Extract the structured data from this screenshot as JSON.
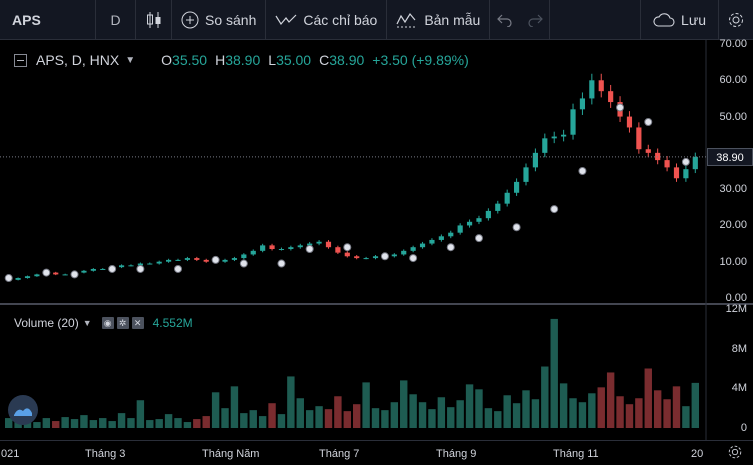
{
  "toolbar": {
    "symbol": "APS",
    "interval": "D",
    "chart_type_icon": "candles-icon",
    "compare_label": "So sánh",
    "indicators_label": "Các chỉ báo",
    "templates_label": "Bản mẫu",
    "save_label": "Lưu",
    "icons": [
      "plus-circle-icon",
      "indicators-icon",
      "templates-icon",
      "undo-icon",
      "redo-icon",
      "cloud-icon",
      "gear-icon"
    ]
  },
  "legend": {
    "title": "APS, D, HNX",
    "open_key": "O",
    "open": "35.50",
    "high_key": "H",
    "high": "38.90",
    "low_key": "L",
    "low": "35.00",
    "close_key": "C",
    "close": "38.90",
    "change": "+3.50 (+9.89%)"
  },
  "volume_legend": {
    "name": "Volume (20)",
    "value": "4.552M",
    "buttons": [
      "eye-icon",
      "settings-icon",
      "close-icon"
    ]
  },
  "colors": {
    "up": "#26a69a",
    "down": "#ef5350",
    "up_volume": "#1e5c52",
    "down_volume": "#7a2c2f",
    "background": "#000000",
    "toolbar": "#131722"
  },
  "chart_data": [
    {
      "type": "candlestick",
      "symbol": "APS",
      "exchange": "HNX",
      "interval": "D",
      "ylim": [
        0,
        70
      ],
      "y_ticks": [
        "0.00",
        "10.00",
        "20.00",
        "30.00",
        "40.00",
        "50.00",
        "60.00",
        "70.00"
      ],
      "last_price": "38.90",
      "x_labels": [
        "021",
        "Tháng 3",
        "Tháng Năm",
        "Tháng 7",
        "Tháng 9",
        "Tháng 11",
        "20"
      ],
      "close_series": [
        5.0,
        5.5,
        6.0,
        6.5,
        7.0,
        6.5,
        6.5,
        7.0,
        7.5,
        8.0,
        8.0,
        8.5,
        9.0,
        9.0,
        9.5,
        9.5,
        10.0,
        10.5,
        10.5,
        11.0,
        10.5,
        10.0,
        10.0,
        10.5,
        11.0,
        12.0,
        13.0,
        14.5,
        13.5,
        13.5,
        14.0,
        14.5,
        15.0,
        15.5,
        14.0,
        12.5,
        11.5,
        11.0,
        11.0,
        11.5,
        11.5,
        12.0,
        13.0,
        14.0,
        15.0,
        16.0,
        17.0,
        18.0,
        20.0,
        21.0,
        22.0,
        24.0,
        26.0,
        29.0,
        32.0,
        36.0,
        40.0,
        44.0,
        44.5,
        45.0,
        52.0,
        55.0,
        60.0,
        57.0,
        54.0,
        50.0,
        47.0,
        41.0,
        40.0,
        38.0,
        36.0,
        33.0,
        35.5,
        38.9
      ],
      "markers_y": [
        5.5,
        7.0,
        6.5,
        8.0,
        8.0,
        8.0,
        10.5,
        9.5,
        9.5,
        13.5,
        14.0,
        11.5,
        11.0,
        14.0,
        16.5,
        19.5,
        24.5,
        35.0,
        52.5,
        48.5,
        37.5
      ]
    },
    {
      "type": "bar",
      "name": "Volume (20)",
      "ylim": [
        0,
        12
      ],
      "y_ticks": [
        "0",
        "4M",
        "8M",
        "12M"
      ],
      "latest": "4.552M",
      "values": [
        1.0,
        0.8,
        1.2,
        0.6,
        1.0,
        0.7,
        1.1,
        0.9,
        1.3,
        0.8,
        1.0,
        0.7,
        1.5,
        1.0,
        2.8,
        0.8,
        0.9,
        1.4,
        1.0,
        0.6,
        0.9,
        1.2,
        3.6,
        2.0,
        4.2,
        1.5,
        1.8,
        1.2,
        2.5,
        1.4,
        5.2,
        3.0,
        1.8,
        2.2,
        1.9,
        3.2,
        1.7,
        2.4,
        4.6,
        2.0,
        1.8,
        2.6,
        4.8,
        3.4,
        2.6,
        1.9,
        3.1,
        2.1,
        2.8,
        4.4,
        3.9,
        2.0,
        1.7,
        3.3,
        2.5,
        3.8,
        2.9,
        6.2,
        11.0,
        4.5,
        3.0,
        2.6,
        3.5,
        4.1,
        5.6,
        3.2,
        2.4,
        3.0,
        6.0,
        3.8,
        2.9,
        4.2,
        2.2,
        4.55
      ]
    }
  ]
}
